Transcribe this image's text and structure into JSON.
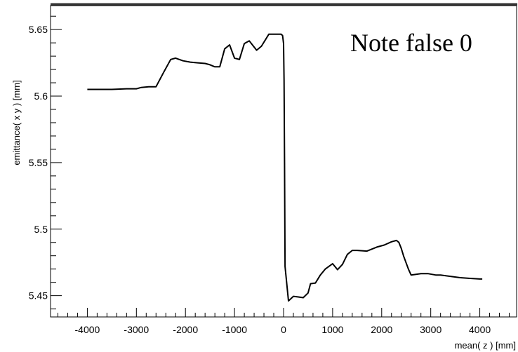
{
  "chart_data": {
    "type": "line",
    "title": "",
    "xlabel": "mean( z ) [mm]",
    "ylabel": "emittance( x y ) [mm]",
    "annotation": "Note false 0",
    "xlim": [
      -4750,
      4750
    ],
    "ylim": [
      5.434,
      5.668
    ],
    "x_ticks": [
      -4000,
      -3000,
      -2000,
      -1000,
      0,
      1000,
      2000,
      3000,
      4000
    ],
    "x_tick_labels": [
      "-4000",
      "-3000",
      "-2000",
      "-1000",
      "0",
      "1000",
      "2000",
      "3000",
      "4000"
    ],
    "y_ticks": [
      5.45,
      5.5,
      5.55,
      5.6,
      5.65
    ],
    "y_tick_labels": [
      "5.45",
      "5.5",
      "5.55",
      "5.6",
      "5.65"
    ],
    "grid": false,
    "line_color": "#000000",
    "series": [
      {
        "x": [
          -4000,
          -3500,
          -3200,
          -3000,
          -2900,
          -2750,
          -2600,
          -2450,
          -2300,
          -2200,
          -2050,
          -1900,
          -1750,
          -1600,
          -1500,
          -1400,
          -1300,
          -1200,
          -1100,
          -1000,
          -900,
          -800,
          -700,
          -550,
          -450,
          -300,
          -150,
          -50,
          -20,
          0,
          10,
          20,
          30,
          100,
          200,
          300,
          400,
          500,
          550,
          650,
          750,
          850,
          1000,
          1100,
          1200,
          1300,
          1400,
          1500,
          1700,
          1900,
          2050,
          2200,
          2300,
          2350,
          2400,
          2450,
          2500,
          2550,
          2600,
          2700,
          2800,
          2950,
          3100,
          3200,
          3400,
          3600,
          3800,
          4000,
          4050
        ],
        "y": [
          5.605,
          5.605,
          5.6055,
          5.6055,
          5.6065,
          5.607,
          5.607,
          5.6175,
          5.6275,
          5.6285,
          5.6265,
          5.6255,
          5.625,
          5.6245,
          5.6235,
          5.622,
          5.622,
          5.6355,
          5.6385,
          5.6285,
          5.6275,
          5.6395,
          5.6415,
          5.6345,
          5.6375,
          5.6465,
          5.6465,
          5.6465,
          5.6455,
          5.6395,
          5.612,
          5.55,
          5.472,
          5.446,
          5.4495,
          5.449,
          5.4485,
          5.452,
          5.459,
          5.4595,
          5.4655,
          5.47,
          5.474,
          5.4695,
          5.4735,
          5.481,
          5.484,
          5.484,
          5.4835,
          5.4865,
          5.488,
          5.4905,
          5.4915,
          5.49,
          5.4855,
          5.4795,
          5.4745,
          5.4695,
          5.4655,
          5.466,
          5.4665,
          5.4665,
          5.4655,
          5.4655,
          5.4645,
          5.4635,
          5.463,
          5.4625,
          5.4625
        ]
      }
    ]
  }
}
